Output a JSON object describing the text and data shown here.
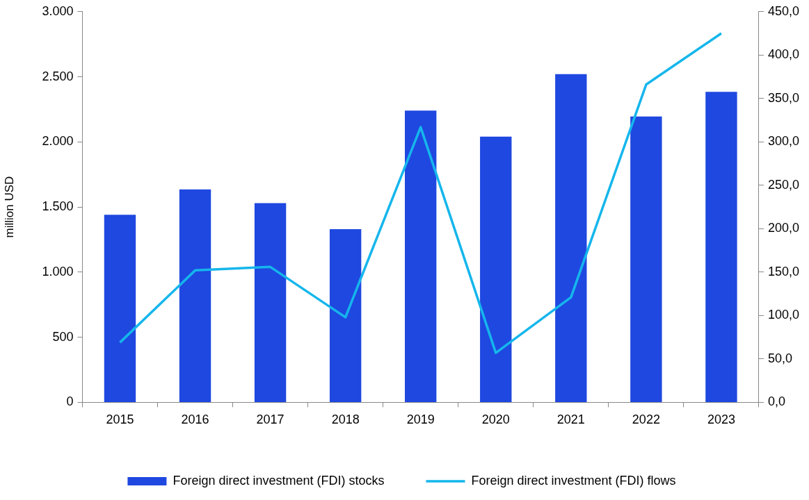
{
  "chart_data": {
    "type": "bar",
    "categories": [
      "2015",
      "2016",
      "2017",
      "2018",
      "2019",
      "2020",
      "2021",
      "2022",
      "2023"
    ],
    "ylabel": "million USD",
    "series": [
      {
        "name": "Foreign direct investment (FDI) stocks",
        "color": "#1f48e0",
        "values": [
          1440,
          1635,
          1530,
          1330,
          2240,
          2040,
          2520,
          2195,
          2385
        ]
      },
      {
        "name": "Foreign direct investment (FDI) flows",
        "type": "line",
        "axis": "y2",
        "color": "#15b6ec",
        "values": [
          69,
          152,
          156,
          98,
          317,
          57,
          121,
          366,
          425
        ]
      }
    ],
    "ylim": [
      0,
      3000
    ],
    "yticks": [
      {
        "value": 0,
        "label": "0"
      },
      {
        "value": 500,
        "label": "500"
      },
      {
        "value": 1000,
        "label": "1.000"
      },
      {
        "value": 1500,
        "label": "1.500"
      },
      {
        "value": 2000,
        "label": "2.000"
      },
      {
        "value": 2500,
        "label": "2.500"
      },
      {
        "value": 3000,
        "label": "3.000"
      }
    ],
    "y2lim": [
      0,
      450
    ],
    "y2ticks": [
      {
        "value": 0,
        "label": "0,0"
      },
      {
        "value": 50,
        "label": "50,0"
      },
      {
        "value": 100,
        "label": "100,0"
      },
      {
        "value": 150,
        "label": "150,0"
      },
      {
        "value": 200,
        "label": "200,0"
      },
      {
        "value": 250,
        "label": "250,0"
      },
      {
        "value": 300,
        "label": "300,0"
      },
      {
        "value": 350,
        "label": "350,0"
      },
      {
        "value": 400,
        "label": "400,0"
      },
      {
        "value": 450,
        "label": "450,0"
      }
    ],
    "grid": false,
    "legend": "bottom",
    "marker": "none"
  }
}
